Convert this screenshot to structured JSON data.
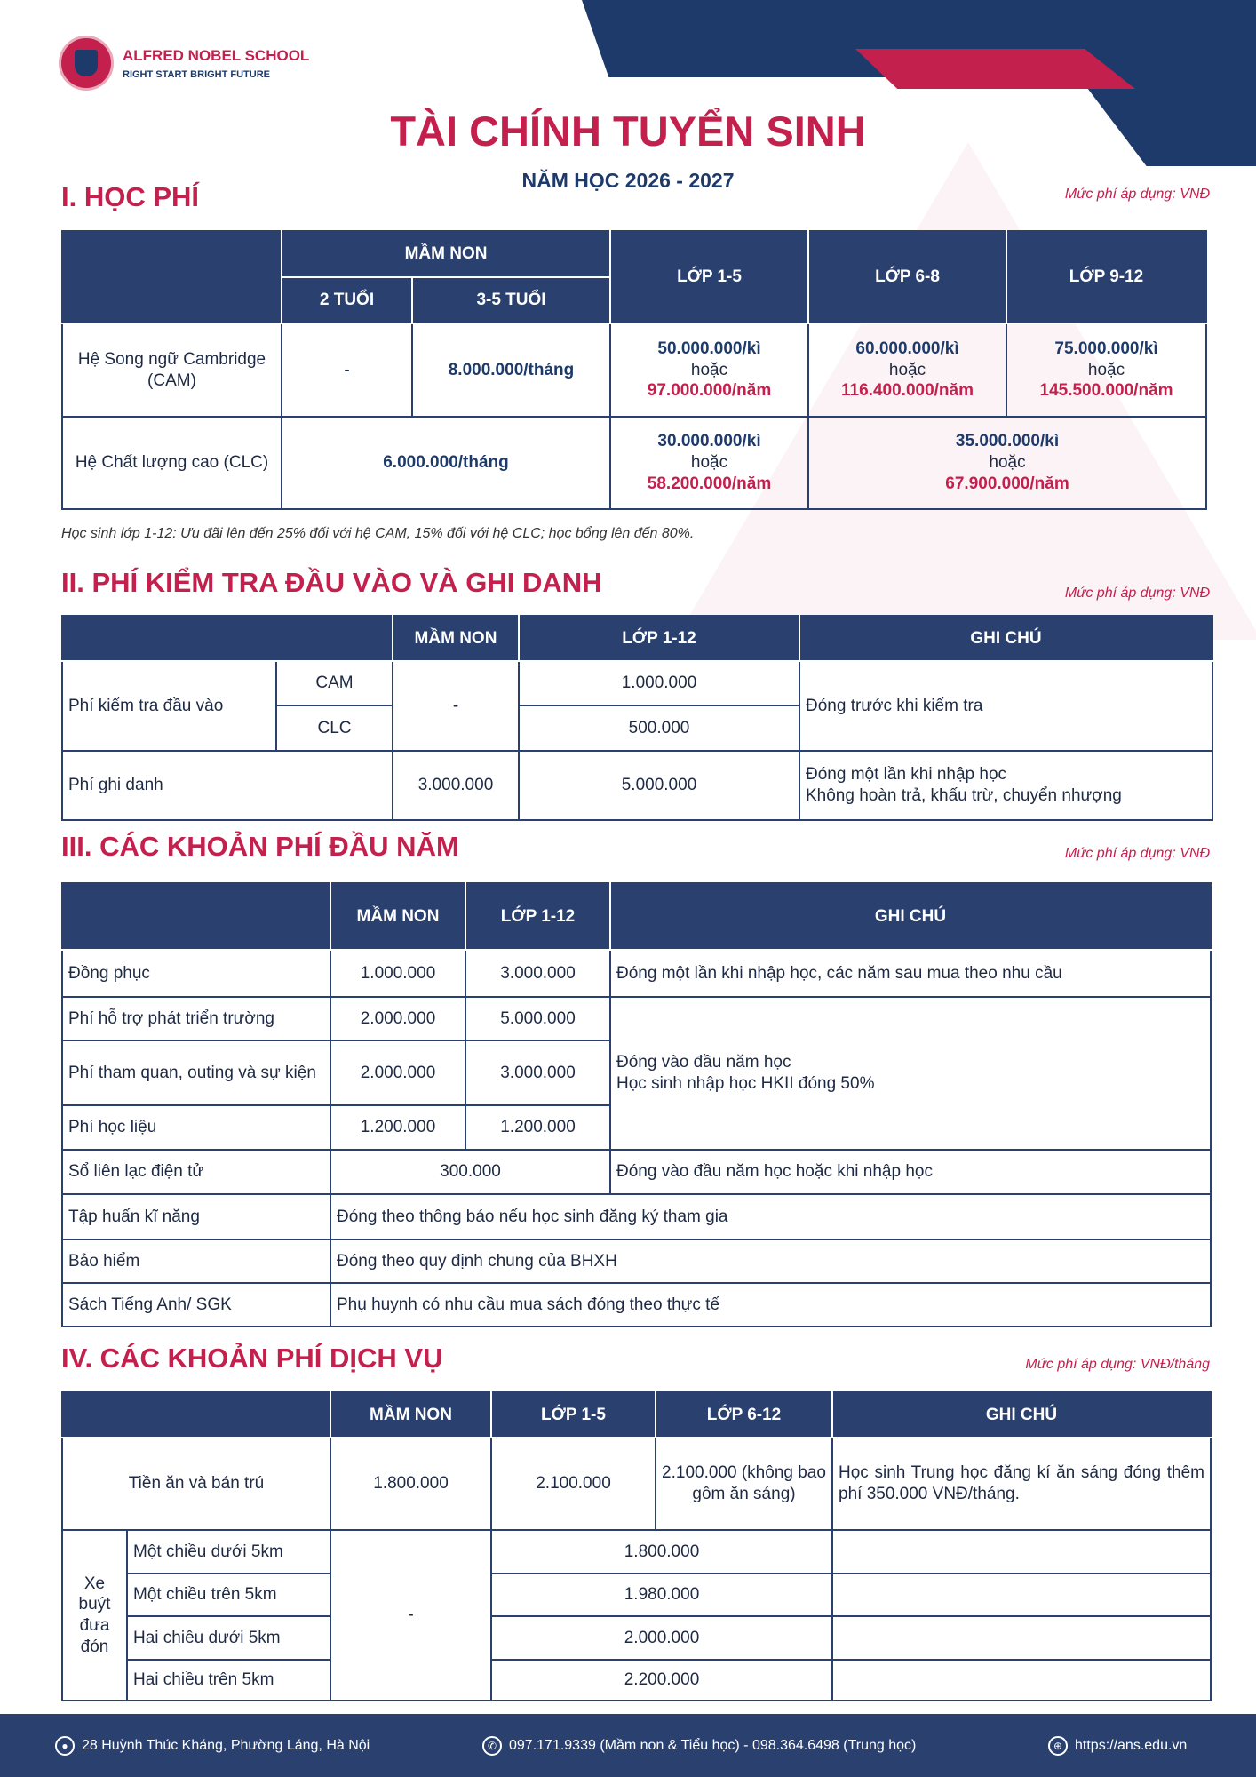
{
  "brand": {
    "name": "ALFRED NOBEL SCHOOL",
    "tagline": "RIGHT START  BRIGHT FUTURE"
  },
  "title": "TÀI CHÍNH TUYỂN SINH",
  "subtitle": "NĂM HỌC 2026 - 2027",
  "colors": {
    "navy": "#2a4170",
    "red": "#c4204d"
  },
  "s1": {
    "heading": "I. HỌC PHÍ",
    "unit": "Mức phí áp dụng: VNĐ",
    "h": {
      "mn": "MẦM NON",
      "a2": "2 TUỔI",
      "a35": "3-5 TUỔI",
      "g15": "LỚP 1-5",
      "g68": "LỚP 6-8",
      "g912": "LỚP 9-12"
    },
    "or": "hoặc",
    "cam": {
      "label": "Hệ Song ngữ Cambridge (CAM)",
      "a2": "-",
      "a35": "8.000.000/tháng",
      "g15k": "50.000.000/kì",
      "g15n": "97.000.000/năm",
      "g68k": "60.000.000/kì",
      "g68n": "116.400.000/năm",
      "g912k": "75.000.000/kì",
      "g912n": "145.500.000/năm"
    },
    "clc": {
      "label": "Hệ Chất lượng cao (CLC)",
      "mn": "6.000.000/tháng",
      "g15k": "30.000.000/kì",
      "g15n": "58.200.000/năm",
      "g612k": "35.000.000/kì",
      "g612n": "67.900.000/năm"
    },
    "note": "Học sinh lớp 1-12: Ưu đãi lên đến 25% đối với hệ CAM, 15% đối với hệ CLC; học bổng lên đến 80%."
  },
  "s2": {
    "heading": "II. PHÍ KIỂM TRA ĐẦU VÀO VÀ GHI DANH",
    "unit": "Mức phí áp dụng: VNĐ",
    "h": {
      "mn": "MẦM NON",
      "g": "LỚP 1-12",
      "note": "GHI CHÚ"
    },
    "test": {
      "label": "Phí kiểm tra đầu vào",
      "cam": "CAM",
      "clc": "CLC",
      "mn": "-",
      "camv": "1.000.000",
      "clcv": "500.000",
      "note": "Đóng trước khi kiểm tra"
    },
    "reg": {
      "label": "Phí ghi danh",
      "mn": "3.000.000",
      "g": "5.000.000",
      "note1": "Đóng một lần khi nhập học",
      "note2": "Không hoàn trả, khấu trừ, chuyển nhượng"
    }
  },
  "s3": {
    "heading": "III. CÁC KHOẢN PHÍ ĐẦU NĂM",
    "unit": "Mức phí áp dụng: VNĐ",
    "h": {
      "mn": "MẦM NON",
      "g": "LỚP 1-12",
      "note": "GHI CHÚ"
    },
    "rows": [
      {
        "label": "Đồng phục",
        "mn": "1.000.000",
        "g": "3.000.000",
        "note": "Đóng một lần khi nhập học, các năm sau mua theo nhu cầu"
      },
      {
        "label": "Phí hỗ trợ phát triển trường",
        "mn": "2.000.000",
        "g": "5.000.000"
      },
      {
        "label": "Phí tham quan, outing và sự kiện",
        "mn": "2.000.000",
        "g": "3.000.000"
      },
      {
        "label": "Phí học liệu",
        "mn": "1.200.000",
        "g": "1.200.000"
      }
    ],
    "group_note1": "Đóng vào đầu năm học",
    "group_note2": "Học sinh nhập học HKII đóng 50%",
    "sll": {
      "label": "Sổ liên lạc điện tử",
      "v": "300.000",
      "note": "Đóng vào đầu năm học hoặc khi nhập học"
    },
    "other": [
      {
        "label": "Tập huấn kĩ năng",
        "note": "Đóng theo thông báo nếu học sinh đăng ký tham gia"
      },
      {
        "label": "Bảo hiểm",
        "note": "Đóng theo quy định chung của BHXH"
      },
      {
        "label": "Sách Tiếng Anh/ SGK",
        "note": "Phụ huynh có nhu cầu mua sách đóng theo thực tế"
      }
    ]
  },
  "s4": {
    "heading": "IV. CÁC KHOẢN PHÍ DỊCH VỤ",
    "unit": "Mức phí áp dụng: VNĐ/tháng",
    "h": {
      "mn": "MẦM NON",
      "g15": "LỚP 1-5",
      "g612": "LỚP 6-12",
      "note": "GHI CHÚ"
    },
    "meal": {
      "label": "Tiền ăn và bán trú",
      "mn": "1.800.000",
      "g15": "2.100.000",
      "g612": "2.100.000 (không bao gồm ăn sáng)",
      "note": "Học sinh Trung học đăng kí ăn sáng đóng thêm phí 350.000 VNĐ/tháng."
    },
    "bus": {
      "label": "Xe buýt đưa đón",
      "mn": "-",
      "rows": [
        {
          "label": "Một chiều dưới 5km",
          "v": "1.800.000"
        },
        {
          "label": "Một chiều trên 5km",
          "v": "1.980.000"
        },
        {
          "label": "Hai chiều dưới 5km",
          "v": "2.000.000"
        },
        {
          "label": "Hai chiều trên 5km",
          "v": "2.200.000"
        }
      ]
    }
  },
  "footer": {
    "address": "28 Huỳnh Thúc Kháng, Phường Láng, Hà Nội",
    "phone": "097.171.9339 (Mầm non & Tiểu học) - 098.364.6498 (Trung học)",
    "web": "https://ans.edu.vn"
  }
}
